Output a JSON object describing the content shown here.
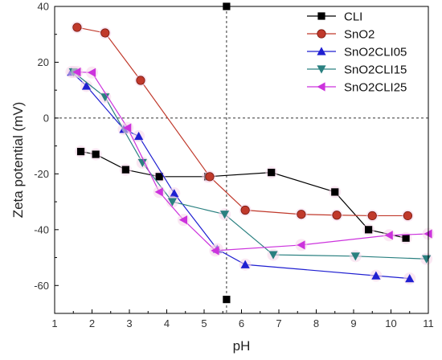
{
  "chart_data": {
    "type": "line",
    "xlabel": "pH",
    "ylabel": "Zeta potential (mV)",
    "xlim": [
      1,
      11
    ],
    "ylim": [
      -70,
      40
    ],
    "x_ticks": [
      1,
      2,
      3,
      4,
      5,
      6,
      7,
      8,
      9,
      10,
      11
    ],
    "y_ticks": [
      -60,
      -40,
      -20,
      0,
      20,
      40
    ],
    "x_tick_labels": [
      "1",
      "2",
      "3",
      "4",
      "5",
      "6",
      "7",
      "8",
      "9",
      "10",
      "11"
    ],
    "y_tick_labels": [
      "-60",
      "-40",
      "-20",
      "0",
      "20",
      "40"
    ],
    "reference_lines": {
      "x": 5.6,
      "y": 0,
      "style": "dashed"
    },
    "legend_position": "top-right",
    "series": [
      {
        "name": "CLI",
        "color": "#000000",
        "marker": "square",
        "points": [
          [
            1.7,
            -12
          ],
          [
            2.1,
            -13
          ],
          [
            2.9,
            -18.5
          ],
          [
            3.8,
            -21
          ],
          [
            5.1,
            -21
          ],
          [
            6.8,
            -19.5
          ],
          [
            8.5,
            -26.5
          ],
          [
            9.4,
            -40
          ],
          [
            10.4,
            -43
          ]
        ]
      },
      {
        "name": "SnO2",
        "color": "#c0392b",
        "marker": "circle",
        "points": [
          [
            1.6,
            32.5
          ],
          [
            2.35,
            30.5
          ],
          [
            3.3,
            13.5
          ],
          [
            5.15,
            -21
          ],
          [
            6.1,
            -33
          ],
          [
            7.6,
            -34.5
          ],
          [
            8.55,
            -34.8
          ],
          [
            9.5,
            -35
          ],
          [
            10.45,
            -35
          ]
        ]
      },
      {
        "name": "SnO2CLI05",
        "color": "#1f1fd1",
        "marker": "triangle-up",
        "points": [
          [
            1.45,
            16.5
          ],
          [
            1.85,
            11.5
          ],
          [
            2.85,
            -4
          ],
          [
            3.25,
            -6.5
          ],
          [
            4.2,
            -27
          ],
          [
            5.35,
            -47
          ],
          [
            6.1,
            -52.5
          ],
          [
            9.6,
            -56.5
          ],
          [
            10.5,
            -57.5
          ]
        ]
      },
      {
        "name": "SnO2CLI15",
        "color": "#2a8080",
        "marker": "triangle-down",
        "points": [
          [
            1.5,
            16.5
          ],
          [
            2.35,
            7.5
          ],
          [
            3.35,
            -16
          ],
          [
            4.15,
            -30
          ],
          [
            5.55,
            -34.5
          ],
          [
            6.85,
            -49
          ],
          [
            9.05,
            -49.5
          ],
          [
            10.95,
            -50.5
          ]
        ]
      },
      {
        "name": "SnO2CLI25",
        "color": "#cc33dd",
        "marker": "triangle-left",
        "points": [
          [
            1.6,
            16.5
          ],
          [
            2.0,
            16.3
          ],
          [
            2.95,
            -3.5
          ],
          [
            3.8,
            -26.5
          ],
          [
            4.45,
            -36.5
          ],
          [
            5.3,
            -47.5
          ],
          [
            7.6,
            -45.5
          ],
          [
            9.95,
            -42
          ],
          [
            11.0,
            -41.5
          ]
        ]
      }
    ],
    "extra_points": [
      {
        "x": 5.6,
        "y": 40,
        "color": "#000000",
        "marker": "square"
      },
      {
        "x": 5.6,
        "y": -65,
        "color": "#000000",
        "marker": "square"
      }
    ]
  }
}
